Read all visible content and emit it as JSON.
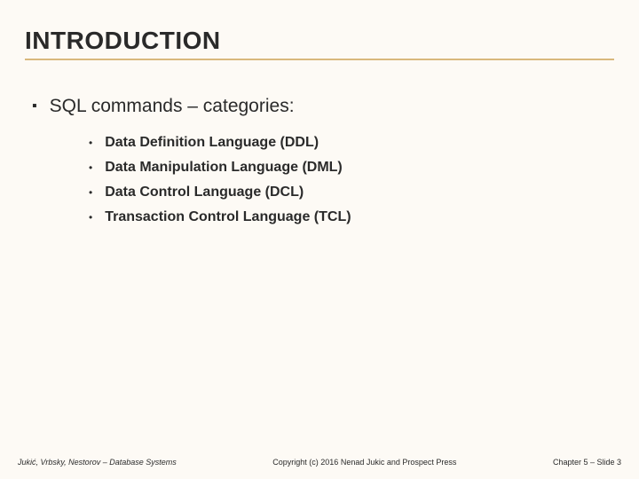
{
  "slide": {
    "title": "INTRODUCTION",
    "title_color": "#2a2a2a",
    "title_fontsize": 28,
    "underline_color": "#d9b87c",
    "background_color": "#fdfaf5",
    "level1": {
      "bullet_char": "▪",
      "text": "SQL commands – categories:",
      "fontsize": 21
    },
    "level2": {
      "bullet_char": "•",
      "fontsize": 16,
      "font_weight": "bold",
      "items": [
        "Data Definition Language (DDL)",
        "Data Manipulation Language (DML)",
        "Data Control Language (DCL)",
        "Transaction Control Language (TCL)"
      ]
    },
    "footer": {
      "left": "Jukić, Vrbsky, Nestorov – Database Systems",
      "center": "Copyright (c) 2016 Nenad Jukic and Prospect Press",
      "right": "Chapter 5 – Slide 3",
      "fontsize": 9
    }
  }
}
